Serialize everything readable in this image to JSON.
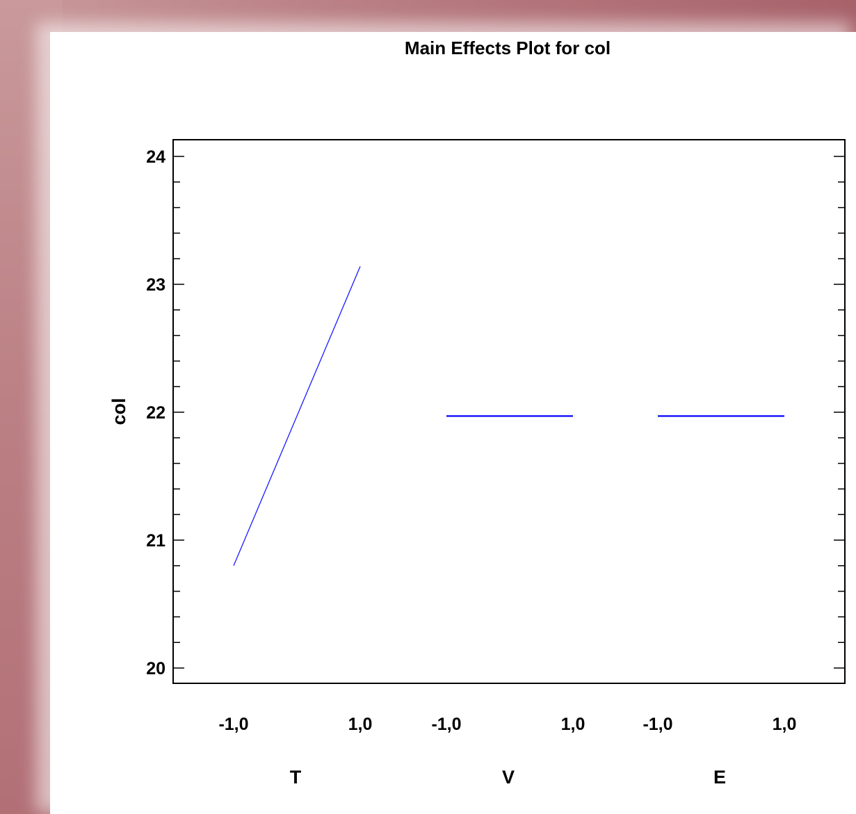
{
  "chart_data": {
    "type": "line",
    "title": "Main Effects Plot for col",
    "ylabel": "col",
    "ylim": [
      20,
      24
    ],
    "yticks": [
      "20",
      "21",
      "22",
      "23",
      "24"
    ],
    "grid": false,
    "line_color": "#1a1aff",
    "factors": [
      {
        "name": "T",
        "x_labels": [
          "-1,0",
          "1,0"
        ],
        "values": [
          20.8,
          23.14
        ]
      },
      {
        "name": "V",
        "x_labels": [
          "-1,0",
          "1,0"
        ],
        "values": [
          21.97,
          21.97
        ]
      },
      {
        "name": "E",
        "x_labels": [
          "-1,0",
          "1,0"
        ],
        "values": [
          21.97,
          21.97
        ]
      }
    ]
  }
}
